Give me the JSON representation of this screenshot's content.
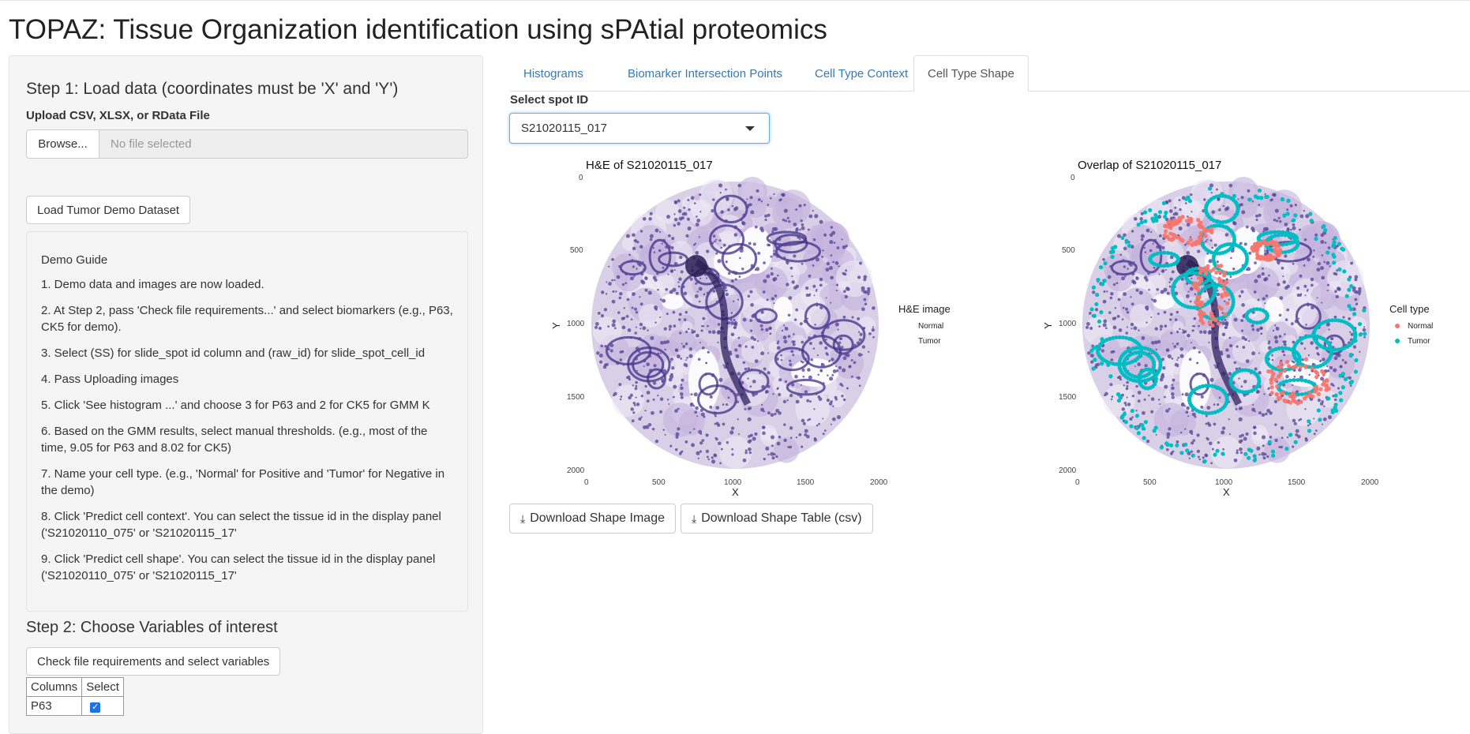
{
  "app_title": "TOPAZ: Tissue Organization identification using sPAtial proteomics",
  "sidebar": {
    "step1_title": "Step 1: Load data (coordinates must be 'X' and 'Y')",
    "upload_label": "Upload CSV, XLSX, or RData File",
    "browse_label": "Browse...",
    "file_placeholder": "No file selected",
    "demo_button": "Load Tumor Demo Dataset",
    "guide": {
      "title": "Demo Guide",
      "items": [
        "1. Demo data and images are now loaded.",
        "2. At Step 2, pass 'Check file requirements...' and select biomarkers (e.g., P63, CK5 for demo).",
        "3. Select (SS) for slide_spot id column and (raw_id) for slide_spot_cell_id",
        "4. Pass Uploading images",
        "5. Click 'See histogram ...' and choose 3 for P63 and 2 for CK5 for GMM K",
        "6. Based on the GMM results, select manual thresholds. (e.g., most of the time, 9.05 for P63 and 8.02 for CK5)",
        "7. Name your cell type. (e.g., 'Normal' for Positive and 'Tumor' for Negative in the demo)",
        "8. Click 'Predict cell context'. You can select the tissue id in the display panel ('S21020110_075' or 'S21020115_17'",
        "9. Click 'Predict cell shape'. You can select the tissue id in the display panel ('S21020110_075' or 'S21020115_17'"
      ]
    },
    "step2_title": "Step 2: Choose Variables of interest",
    "check_button": "Check file requirements and select variables",
    "table": {
      "headers": [
        "Columns",
        "Select"
      ],
      "rows": [
        {
          "column": "P63",
          "selected": true
        }
      ]
    }
  },
  "tabs": [
    {
      "label": "Histograms",
      "active": false
    },
    {
      "label": "Biomarker Intersection Points",
      "active": false
    },
    {
      "label": "Cell Type Context",
      "active": false
    },
    {
      "label": "Cell Type Shape",
      "active": true
    }
  ],
  "spot": {
    "label": "Select spot ID",
    "value": "S21020115_017"
  },
  "plots": {
    "he": {
      "title": "H&E of S21020115_017",
      "legend_title": "H&E image",
      "legend_items": [
        "Normal",
        "Tumor"
      ]
    },
    "overlap": {
      "title": "Overlap of S21020115_017",
      "legend_title": "Cell type",
      "legend_items": [
        "Normal",
        "Tumor"
      ]
    },
    "xlabel": "X",
    "ylabel": "Y",
    "x_ticks": [
      "0",
      "500",
      "1000",
      "1500",
      "2000"
    ],
    "y_ticks": [
      "0",
      "500",
      "1000",
      "1500",
      "2000"
    ],
    "colors": {
      "normal": "#f8766d",
      "tumor": "#00bfc4",
      "stain": "#5a4a9a"
    }
  },
  "downloads": {
    "shape_image": "Download Shape Image",
    "shape_table": "Download Shape Table (csv)"
  }
}
